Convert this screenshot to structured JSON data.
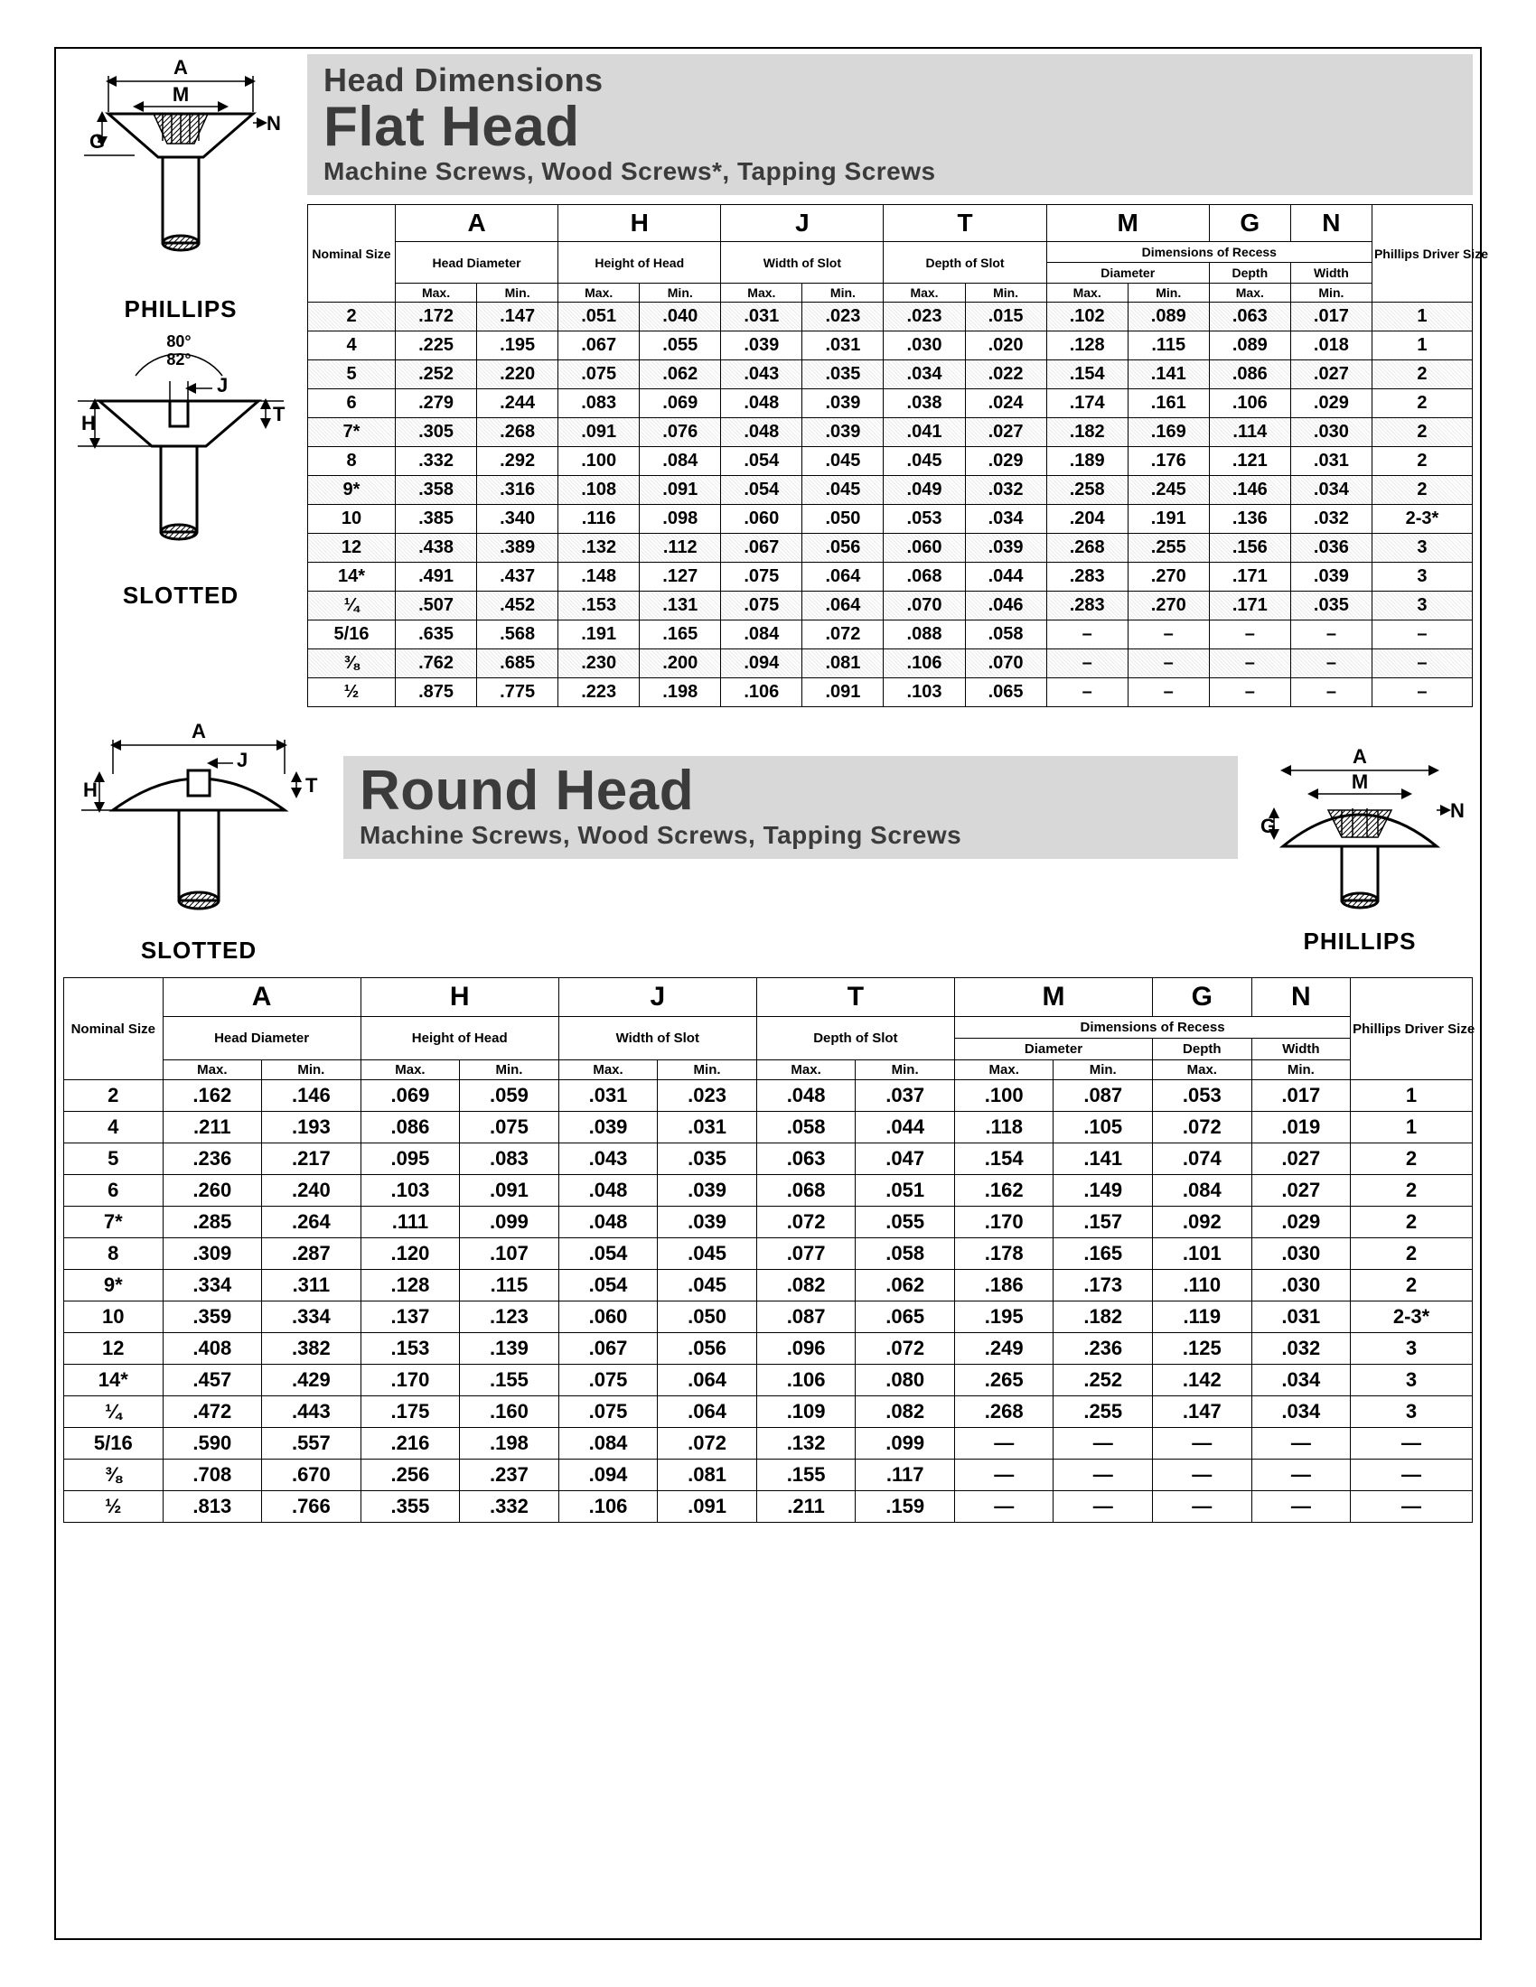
{
  "labels": {
    "phillips": "PHILLIPS",
    "slotted": "SLOTTED"
  },
  "flat": {
    "header": {
      "section": "Head Dimensions",
      "main": "Flat Head",
      "sub": "Machine Screws, Wood Screws*, Tapping Screws"
    },
    "diagram": {
      "angle1": "80°",
      "angle2": "82°"
    },
    "columns": {
      "letters": [
        "A",
        "H",
        "J",
        "T",
        "M",
        "G",
        "N"
      ],
      "recess_label": "Dimensions of Recess",
      "groups": [
        "Head Diameter",
        "Height of Head",
        "Width of Slot",
        "Depth of Slot",
        "Diameter",
        "Depth",
        "Width"
      ],
      "nominal": "Nominal Size",
      "minmax": [
        "Max.",
        "Min."
      ],
      "driver": "Phillips Driver Size"
    },
    "rows": [
      {
        "size": "2",
        "shaded": true,
        "v": [
          ".172",
          ".147",
          ".051",
          ".040",
          ".031",
          ".023",
          ".023",
          ".015",
          ".102",
          ".089",
          ".063",
          ".017"
        ],
        "drv": "1"
      },
      {
        "size": "4",
        "v": [
          ".225",
          ".195",
          ".067",
          ".055",
          ".039",
          ".031",
          ".030",
          ".020",
          ".128",
          ".115",
          ".089",
          ".018"
        ],
        "drv": "1"
      },
      {
        "size": "5",
        "shaded": true,
        "v": [
          ".252",
          ".220",
          ".075",
          ".062",
          ".043",
          ".035",
          ".034",
          ".022",
          ".154",
          ".141",
          ".086",
          ".027"
        ],
        "drv": "2"
      },
      {
        "size": "6",
        "v": [
          ".279",
          ".244",
          ".083",
          ".069",
          ".048",
          ".039",
          ".038",
          ".024",
          ".174",
          ".161",
          ".106",
          ".029"
        ],
        "drv": "2"
      },
      {
        "size": "7*",
        "shaded": true,
        "v": [
          ".305",
          ".268",
          ".091",
          ".076",
          ".048",
          ".039",
          ".041",
          ".027",
          ".182",
          ".169",
          ".114",
          ".030"
        ],
        "drv": "2"
      },
      {
        "size": "8",
        "v": [
          ".332",
          ".292",
          ".100",
          ".084",
          ".054",
          ".045",
          ".045",
          ".029",
          ".189",
          ".176",
          ".121",
          ".031"
        ],
        "drv": "2"
      },
      {
        "size": "9*",
        "shaded": true,
        "v": [
          ".358",
          ".316",
          ".108",
          ".091",
          ".054",
          ".045",
          ".049",
          ".032",
          ".258",
          ".245",
          ".146",
          ".034"
        ],
        "drv": "2"
      },
      {
        "size": "10",
        "v": [
          ".385",
          ".340",
          ".116",
          ".098",
          ".060",
          ".050",
          ".053",
          ".034",
          ".204",
          ".191",
          ".136",
          ".032"
        ],
        "drv": "2-3*"
      },
      {
        "size": "12",
        "shaded": true,
        "v": [
          ".438",
          ".389",
          ".132",
          ".112",
          ".067",
          ".056",
          ".060",
          ".039",
          ".268",
          ".255",
          ".156",
          ".036"
        ],
        "drv": "3"
      },
      {
        "size": "14*",
        "v": [
          ".491",
          ".437",
          ".148",
          ".127",
          ".075",
          ".064",
          ".068",
          ".044",
          ".283",
          ".270",
          ".171",
          ".039"
        ],
        "drv": "3"
      },
      {
        "size": "¼",
        "shaded": true,
        "v": [
          ".507",
          ".452",
          ".153",
          ".131",
          ".075",
          ".064",
          ".070",
          ".046",
          ".283",
          ".270",
          ".171",
          ".035"
        ],
        "drv": "3"
      },
      {
        "size": "5/16",
        "v": [
          ".635",
          ".568",
          ".191",
          ".165",
          ".084",
          ".072",
          ".088",
          ".058",
          "–",
          "–",
          "–",
          "–"
        ],
        "drv": "–"
      },
      {
        "size": "⅜",
        "shaded": true,
        "v": [
          ".762",
          ".685",
          ".230",
          ".200",
          ".094",
          ".081",
          ".106",
          ".070",
          "–",
          "–",
          "–",
          "–"
        ],
        "drv": "–"
      },
      {
        "size": "½",
        "v": [
          ".875",
          ".775",
          ".223",
          ".198",
          ".106",
          ".091",
          ".103",
          ".065",
          "–",
          "–",
          "–",
          "–"
        ],
        "drv": "–"
      }
    ]
  },
  "round": {
    "header": {
      "main": "Round Head",
      "sub": "Machine Screws, Wood Screws, Tapping Screws"
    },
    "columns": {
      "letters": [
        "A",
        "H",
        "J",
        "T",
        "M",
        "G",
        "N"
      ],
      "recess_label": "Dimensions of Recess",
      "groups": [
        "Head Diameter",
        "Height of Head",
        "Width of Slot",
        "Depth of Slot",
        "Diameter",
        "Depth",
        "Width"
      ],
      "nominal": "Nominal Size",
      "minmax": [
        "Max.",
        "Min."
      ],
      "driver": "Phillips Driver Size"
    },
    "rows": [
      {
        "size": "2",
        "v": [
          ".162",
          ".146",
          ".069",
          ".059",
          ".031",
          ".023",
          ".048",
          ".037",
          ".100",
          ".087",
          ".053",
          ".017"
        ],
        "drv": "1"
      },
      {
        "size": "4",
        "v": [
          ".211",
          ".193",
          ".086",
          ".075",
          ".039",
          ".031",
          ".058",
          ".044",
          ".118",
          ".105",
          ".072",
          ".019"
        ],
        "drv": "1"
      },
      {
        "size": "5",
        "v": [
          ".236",
          ".217",
          ".095",
          ".083",
          ".043",
          ".035",
          ".063",
          ".047",
          ".154",
          ".141",
          ".074",
          ".027"
        ],
        "drv": "2"
      },
      {
        "size": "6",
        "v": [
          ".260",
          ".240",
          ".103",
          ".091",
          ".048",
          ".039",
          ".068",
          ".051",
          ".162",
          ".149",
          ".084",
          ".027"
        ],
        "drv": "2"
      },
      {
        "size": "7*",
        "v": [
          ".285",
          ".264",
          ".111",
          ".099",
          ".048",
          ".039",
          ".072",
          ".055",
          ".170",
          ".157",
          ".092",
          ".029"
        ],
        "drv": "2"
      },
      {
        "size": "8",
        "v": [
          ".309",
          ".287",
          ".120",
          ".107",
          ".054",
          ".045",
          ".077",
          ".058",
          ".178",
          ".165",
          ".101",
          ".030"
        ],
        "drv": "2"
      },
      {
        "size": "9*",
        "v": [
          ".334",
          ".311",
          ".128",
          ".115",
          ".054",
          ".045",
          ".082",
          ".062",
          ".186",
          ".173",
          ".110",
          ".030"
        ],
        "drv": "2"
      },
      {
        "size": "10",
        "v": [
          ".359",
          ".334",
          ".137",
          ".123",
          ".060",
          ".050",
          ".087",
          ".065",
          ".195",
          ".182",
          ".119",
          ".031"
        ],
        "drv": "2-3*"
      },
      {
        "size": "12",
        "v": [
          ".408",
          ".382",
          ".153",
          ".139",
          ".067",
          ".056",
          ".096",
          ".072",
          ".249",
          ".236",
          ".125",
          ".032"
        ],
        "drv": "3"
      },
      {
        "size": "14*",
        "v": [
          ".457",
          ".429",
          ".170",
          ".155",
          ".075",
          ".064",
          ".106",
          ".080",
          ".265",
          ".252",
          ".142",
          ".034"
        ],
        "drv": "3"
      },
      {
        "size": "¼",
        "v": [
          ".472",
          ".443",
          ".175",
          ".160",
          ".075",
          ".064",
          ".109",
          ".082",
          ".268",
          ".255",
          ".147",
          ".034"
        ],
        "drv": "3"
      },
      {
        "size": "5/16",
        "v": [
          ".590",
          ".557",
          ".216",
          ".198",
          ".084",
          ".072",
          ".132",
          ".099",
          "—",
          "—",
          "—",
          "—"
        ],
        "drv": "—"
      },
      {
        "size": "⅜",
        "v": [
          ".708",
          ".670",
          ".256",
          ".237",
          ".094",
          ".081",
          ".155",
          ".117",
          "—",
          "—",
          "—",
          "—"
        ],
        "drv": "—"
      },
      {
        "size": "½",
        "v": [
          ".813",
          ".766",
          ".355",
          ".332",
          ".106",
          ".091",
          ".211",
          ".159",
          "—",
          "—",
          "—",
          "—"
        ],
        "drv": "—"
      }
    ]
  }
}
